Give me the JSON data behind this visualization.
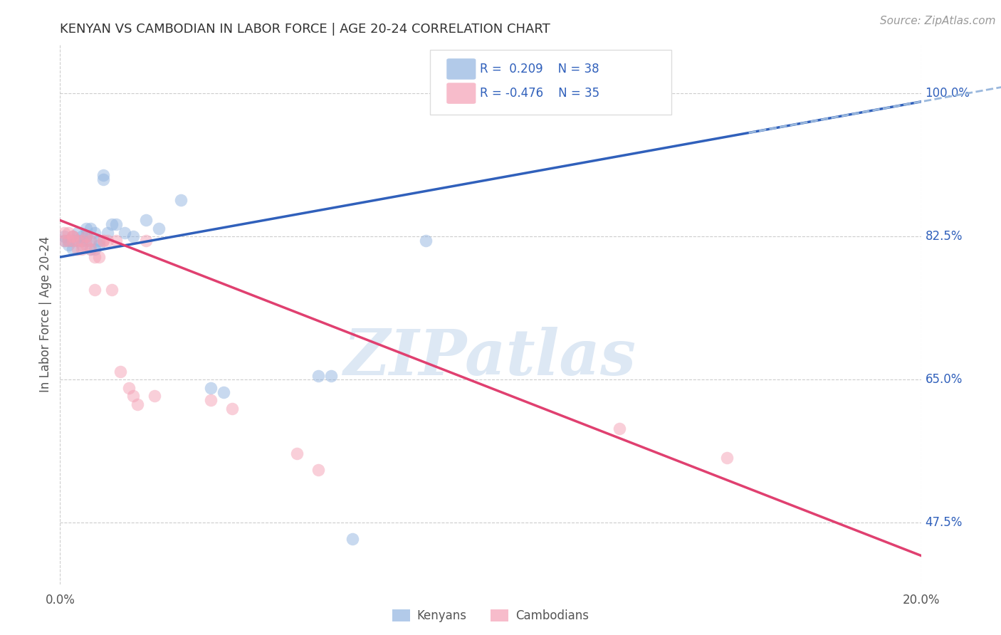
{
  "title": "KENYAN VS CAMBODIAN IN LABOR FORCE | AGE 20-24 CORRELATION CHART",
  "source": "Source: ZipAtlas.com",
  "ylabel": "In Labor Force | Age 20-24",
  "yticks": [
    0.475,
    0.65,
    0.825,
    1.0
  ],
  "ytick_labels": [
    "47.5%",
    "65.0%",
    "82.5%",
    "100.0%"
  ],
  "kenyan_color": "#92B4E0",
  "cambodian_color": "#F4A0B5",
  "kenyan_line_color": "#3060BB",
  "cambodian_line_color": "#E04070",
  "dashed_line_color": "#9AB8DD",
  "watermark_text": "ZIPatlas",
  "xmin": 0.0,
  "xmax": 0.2,
  "ymin": 0.4,
  "ymax": 1.06,
  "marker_size": 160,
  "marker_alpha": 0.5,
  "blue_slope": 0.95,
  "blue_intercept": 0.8,
  "pink_slope": -2.05,
  "pink_intercept": 0.845,
  "blue_x": [
    0.001,
    0.001,
    0.002,
    0.002,
    0.003,
    0.003,
    0.003,
    0.004,
    0.004,
    0.005,
    0.005,
    0.005,
    0.006,
    0.006,
    0.006,
    0.007,
    0.007,
    0.007,
    0.008,
    0.008,
    0.009,
    0.009,
    0.01,
    0.01,
    0.011,
    0.012,
    0.013,
    0.015,
    0.017,
    0.02,
    0.023,
    0.028,
    0.035,
    0.038,
    0.06,
    0.063,
    0.068,
    0.085
  ],
  "blue_y": [
    0.825,
    0.82,
    0.82,
    0.815,
    0.825,
    0.82,
    0.81,
    0.83,
    0.82,
    0.825,
    0.82,
    0.815,
    0.835,
    0.825,
    0.82,
    0.835,
    0.82,
    0.81,
    0.83,
    0.81,
    0.82,
    0.815,
    0.9,
    0.895,
    0.83,
    0.84,
    0.84,
    0.83,
    0.825,
    0.845,
    0.835,
    0.87,
    0.64,
    0.635,
    0.655,
    0.655,
    0.455,
    0.82
  ],
  "pink_x": [
    0.001,
    0.001,
    0.002,
    0.002,
    0.003,
    0.003,
    0.003,
    0.004,
    0.004,
    0.005,
    0.005,
    0.006,
    0.006,
    0.007,
    0.007,
    0.008,
    0.008,
    0.009,
    0.01,
    0.01,
    0.011,
    0.012,
    0.013,
    0.014,
    0.016,
    0.017,
    0.018,
    0.02,
    0.022,
    0.035,
    0.04,
    0.055,
    0.06,
    0.13,
    0.155
  ],
  "pink_y": [
    0.83,
    0.82,
    0.83,
    0.82,
    0.825,
    0.825,
    0.82,
    0.81,
    0.82,
    0.81,
    0.82,
    0.825,
    0.815,
    0.82,
    0.81,
    0.8,
    0.76,
    0.8,
    0.82,
    0.82,
    0.82,
    0.76,
    0.82,
    0.66,
    0.64,
    0.63,
    0.62,
    0.82,
    0.63,
    0.625,
    0.615,
    0.56,
    0.54,
    0.59,
    0.555
  ]
}
